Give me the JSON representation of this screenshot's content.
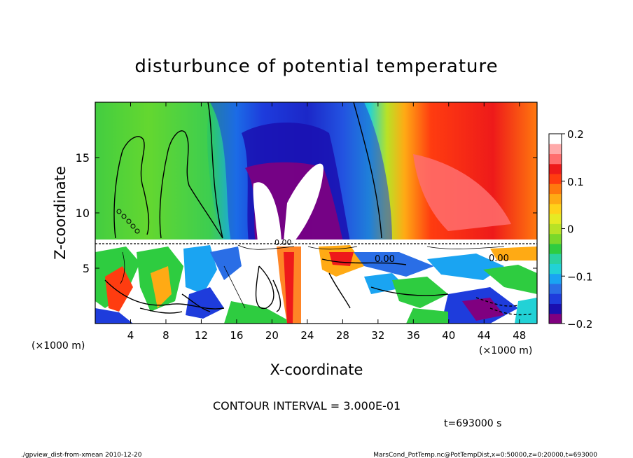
{
  "chart_data": {
    "type": "heatmap",
    "title": "disturbunce of potential temperature",
    "xlabel": "X-coordinate",
    "ylabel": "Z-coordinate",
    "x_unit_left": "(×1000 m)",
    "x_unit_right": "(×1000 m)",
    "xlim": [
      0,
      50
    ],
    "ylim": [
      0,
      20
    ],
    "xticks": [
      "4",
      "8",
      "12",
      "16",
      "20",
      "24",
      "28",
      "32",
      "36",
      "40",
      "44",
      "48"
    ],
    "yticks": [
      "5",
      "10",
      "15"
    ],
    "colorbar": {
      "ticks": [
        "0.2",
        "0.1",
        "0",
        "−0.1",
        "−0.2"
      ],
      "range": [
        -0.2,
        0.2
      ],
      "colors": [
        "#800080",
        "#1a0fb0",
        "#1e3cdc",
        "#2a6ee6",
        "#1aa4f2",
        "#22d2d6",
        "#2ad2a0",
        "#2ecc40",
        "#7ad82a",
        "#b8e226",
        "#e6ea24",
        "#ffd21a",
        "#ffaa14",
        "#ff780e",
        "#ff3c10",
        "#ee1a1a",
        "#ff6e6e",
        "#ffaaaa",
        "#ffffff"
      ]
    },
    "contour_labels": [
      "0.00",
      "0.00",
      "0.00",
      "0.00",
      "0.00",
      "0.00"
    ],
    "contour_interval": "CONTOUR INTERVAL = 3.000E-01",
    "time": "t=693000 s"
  },
  "footer": {
    "left": "./gpview_dist-from-xmean  2010-12-20",
    "right": "MarsCond_PotTemp.nc@PotTempDist,x=0:50000,z=0:20000,t=693000"
  }
}
